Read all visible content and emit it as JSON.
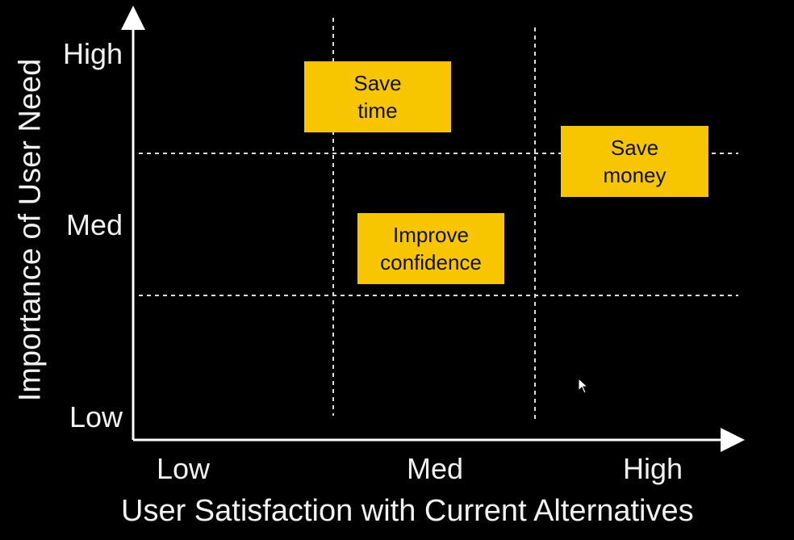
{
  "y_axis": {
    "title": "Importance of User Need",
    "ticks": [
      "High",
      "Med",
      "Low"
    ]
  },
  "x_axis": {
    "title": "User Satisfaction with Current Alternatives",
    "ticks": [
      "Low",
      "Med",
      "High"
    ]
  },
  "notes": [
    {
      "id": "save-time",
      "line1": "Save",
      "line2": "time"
    },
    {
      "id": "save-money",
      "line1": "Save",
      "line2": "money"
    },
    {
      "id": "improve-confidence",
      "line1": "Improve",
      "line2": "confidence"
    }
  ],
  "colors": {
    "background": "#000000",
    "note_fill": "#f7c600",
    "axis": "#ffffff"
  },
  "icons": {
    "cursor": "mouse-pointer-icon"
  }
}
